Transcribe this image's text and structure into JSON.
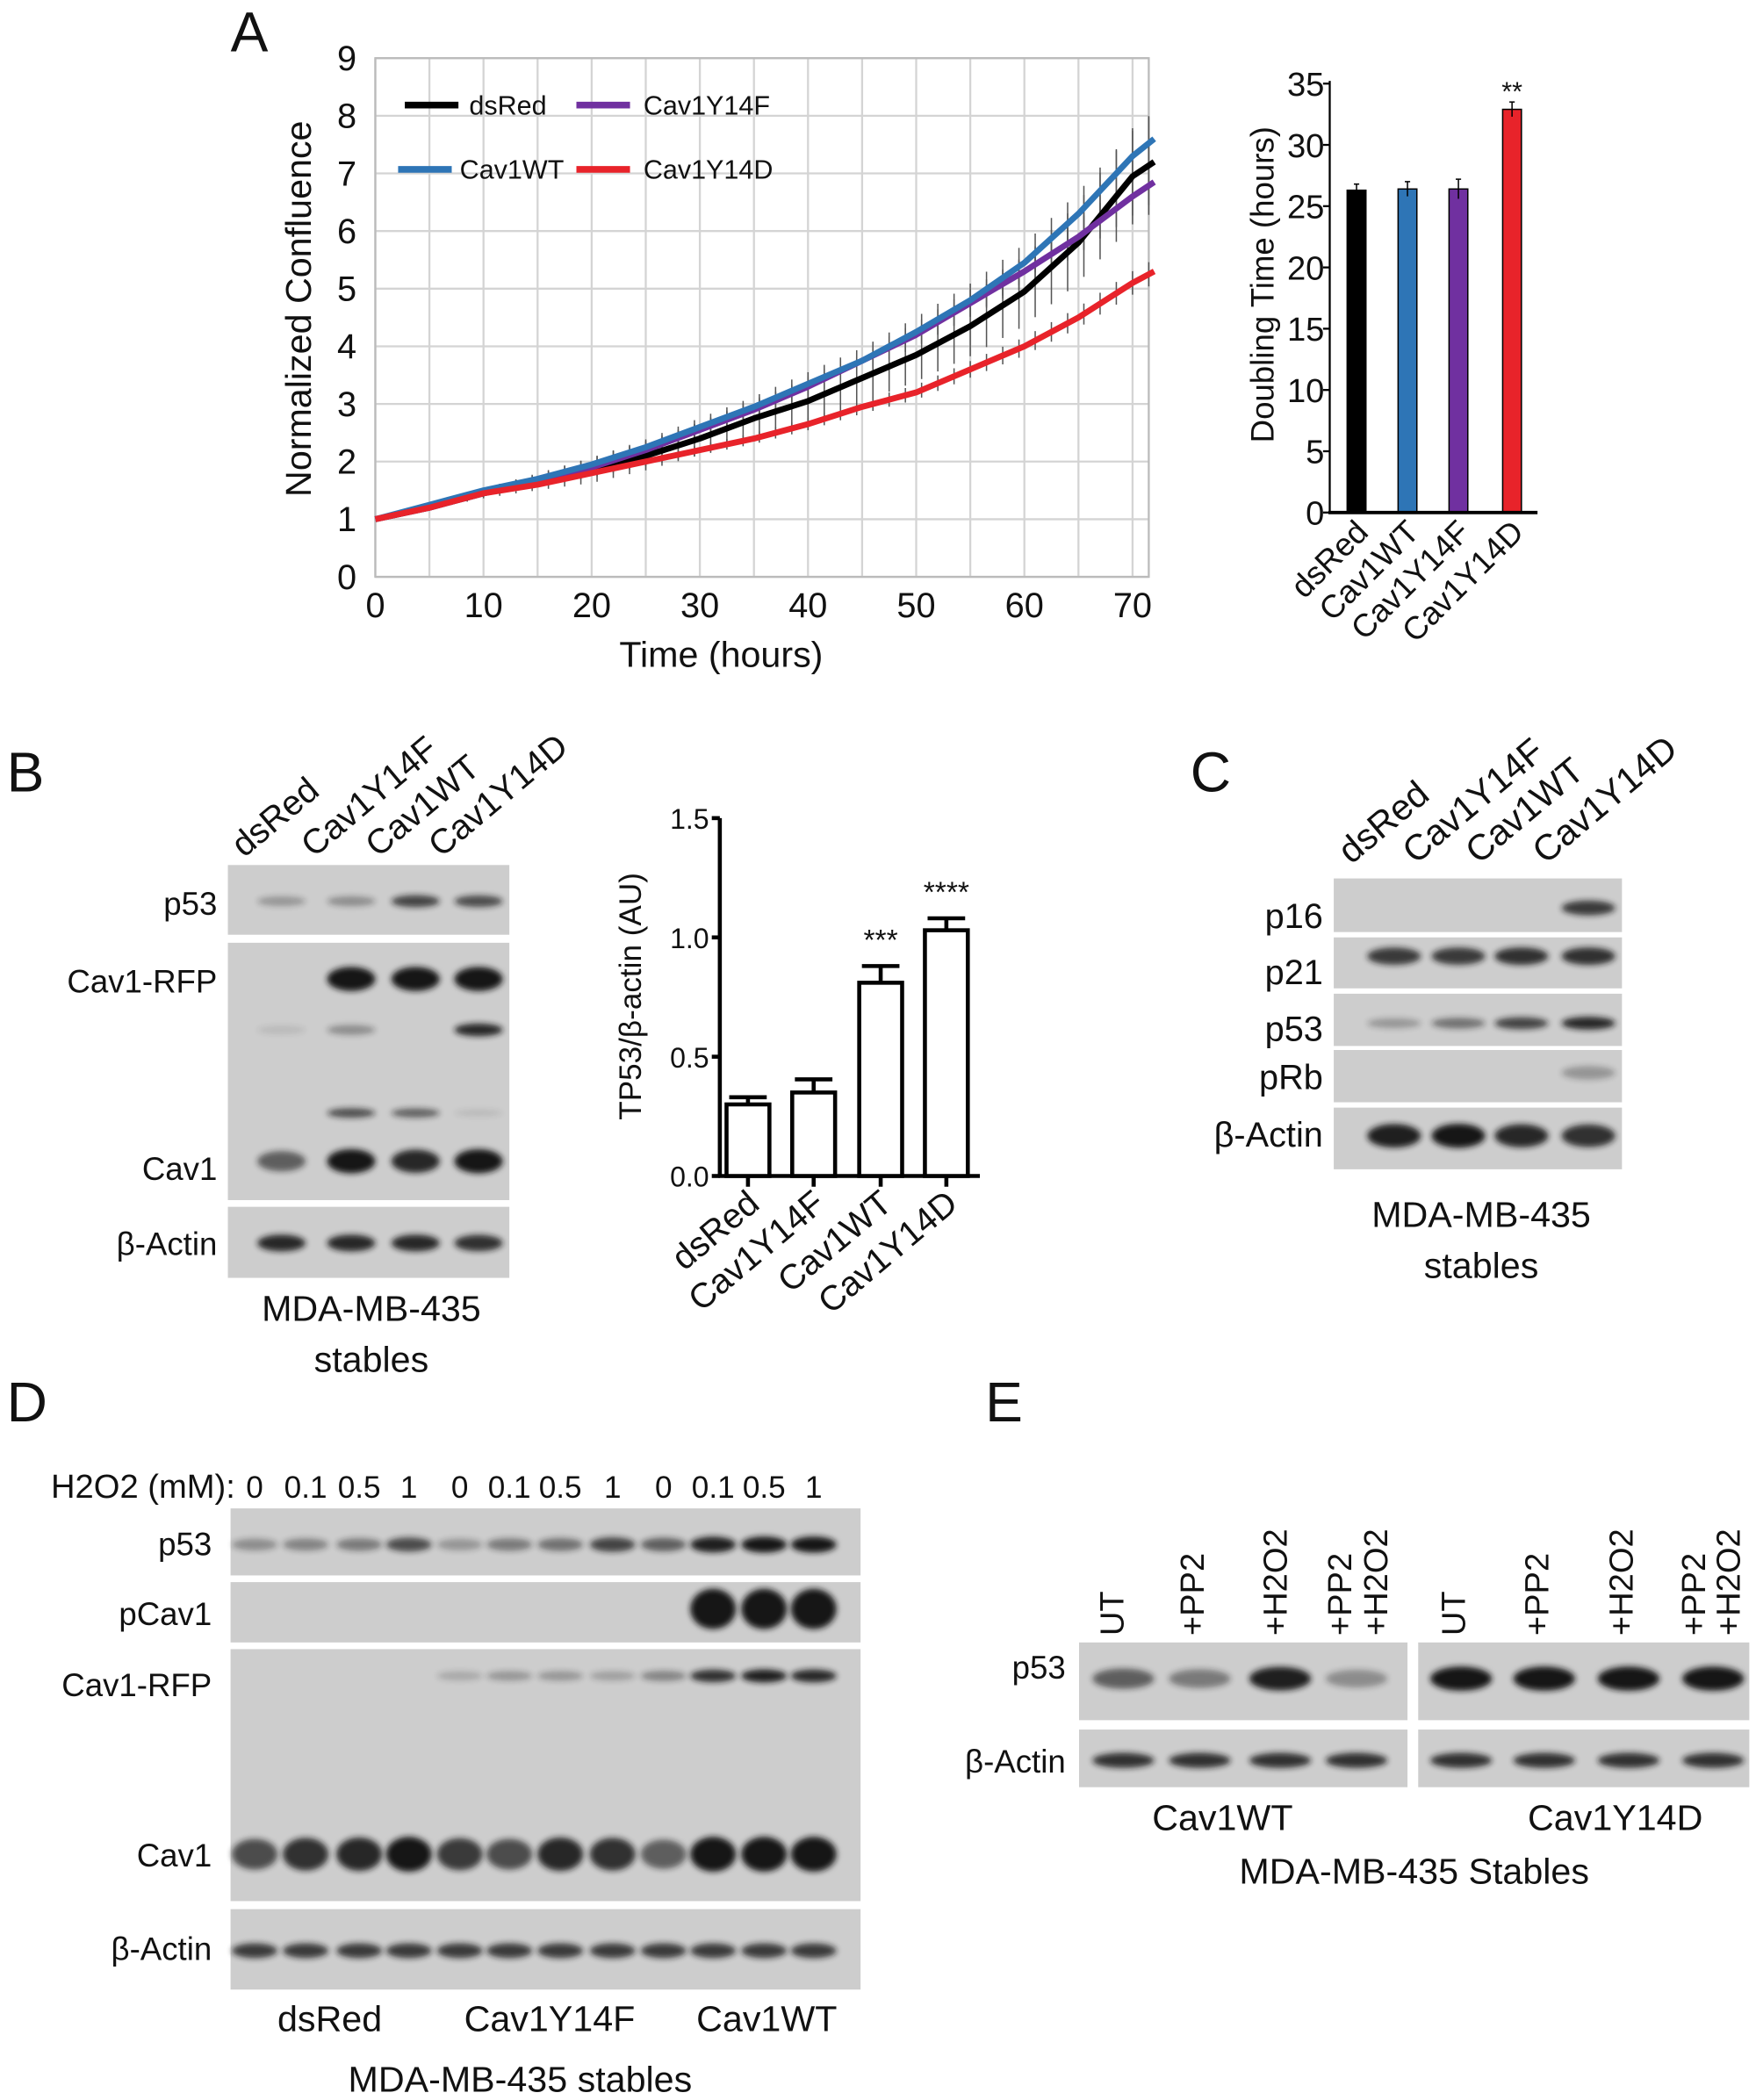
{
  "panels": {
    "A": "A",
    "B": "B",
    "C": "C",
    "D": "D",
    "E": "E"
  },
  "chart_data": [
    {
      "type": "line",
      "xlabel": "Time (hours)",
      "ylabel": "Normalized Confluence",
      "xlim": [
        0,
        71.5
      ],
      "ylim": [
        0,
        9
      ],
      "xticks": [
        "0",
        "10",
        "20",
        "30",
        "40",
        "50",
        "60",
        "70"
      ],
      "yticks": [
        "0",
        "1",
        "2",
        "3",
        "4",
        "5",
        "6",
        "7",
        "8",
        "9"
      ],
      "grid": true,
      "legend": "top-left",
      "series": [
        {
          "name": "dsRed",
          "color": "#000000",
          "x": [
            0,
            5,
            10,
            15,
            20,
            25,
            30,
            35,
            40,
            45,
            50,
            55,
            60,
            65,
            70,
            72
          ],
          "y": [
            1.0,
            1.2,
            1.45,
            1.65,
            1.85,
            2.1,
            2.4,
            2.75,
            3.05,
            3.45,
            3.85,
            4.35,
            4.95,
            5.8,
            6.95,
            7.2
          ],
          "rel_err": 0.12
        },
        {
          "name": "Cav1Y14F",
          "color": "#7030a0",
          "x": [
            0,
            5,
            10,
            15,
            20,
            25,
            30,
            35,
            40,
            45,
            50,
            55,
            60,
            65,
            70,
            72
          ],
          "y": [
            1.0,
            1.2,
            1.45,
            1.65,
            1.9,
            2.2,
            2.55,
            2.9,
            3.3,
            3.75,
            4.2,
            4.75,
            5.3,
            5.9,
            6.6,
            6.85
          ],
          "rel_err": 0.05
        },
        {
          "name": "Cav1WT",
          "color": "#2e75b6",
          "x": [
            0,
            5,
            10,
            15,
            20,
            25,
            30,
            35,
            40,
            45,
            50,
            55,
            60,
            65,
            70,
            72
          ],
          "y": [
            1.0,
            1.25,
            1.5,
            1.7,
            1.95,
            2.25,
            2.6,
            2.95,
            3.35,
            3.75,
            4.25,
            4.8,
            5.45,
            6.3,
            7.3,
            7.6
          ],
          "rel_err": 0.06
        },
        {
          "name": "Cav1Y14D",
          "color": "#e8232a",
          "x": [
            0,
            5,
            10,
            15,
            20,
            25,
            30,
            35,
            40,
            45,
            50,
            55,
            60,
            65,
            70,
            72
          ],
          "y": [
            1.0,
            1.2,
            1.45,
            1.6,
            1.8,
            2.0,
            2.2,
            2.4,
            2.65,
            2.95,
            3.2,
            3.6,
            4.0,
            4.5,
            5.1,
            5.3
          ],
          "rel_err": 0.04
        }
      ]
    },
    {
      "type": "bar",
      "ylabel": "Doubling Time (hours)",
      "categories": [
        "dsRed",
        "Cav1WT",
        "Cav1Y14F",
        "Cav1Y14D"
      ],
      "values": [
        26.3,
        26.4,
        26.4,
        32.9
      ],
      "errors": [
        0.5,
        0.6,
        0.8,
        0.6
      ],
      "colors": [
        "#000000",
        "#2e75b6",
        "#7030a0",
        "#e8232a"
      ],
      "ylim": [
        0,
        35
      ],
      "yticks": [
        "0",
        "5",
        "10",
        "15",
        "20",
        "25",
        "30",
        "35"
      ],
      "annotations": [
        "",
        "",
        "",
        "**"
      ]
    },
    {
      "type": "bar",
      "ylabel": "TP53/β-actin (AU)",
      "categories": [
        "dsRed",
        "Cav1Y14F",
        "Cav1WT",
        "Cav1Y14D"
      ],
      "values": [
        0.3,
        0.35,
        0.81,
        1.03
      ],
      "errors": [
        0.03,
        0.055,
        0.07,
        0.05
      ],
      "ylim": [
        0,
        1.5
      ],
      "yticks": [
        "0.0",
        "0.5",
        "1.0",
        "1.5"
      ],
      "annotations": [
        "",
        "",
        "***",
        "****"
      ]
    }
  ],
  "blot_B": {
    "lanes": [
      "dsRed",
      "Cav1Y14F",
      "Cav1WT",
      "Cav1Y14D"
    ],
    "rows": [
      {
        "label": "p53",
        "intensity": [
          0.3,
          0.35,
          0.75,
          0.7
        ]
      },
      {
        "label": "Cav1-RFP",
        "intensity": [
          0,
          1,
          1,
          1
        ]
      },
      {
        "label": "",
        "intensity": [
          0.1,
          0.35,
          0,
          0.9
        ]
      },
      {
        "label": "",
        "intensity": [
          0,
          0.7,
          0.6,
          0.1
        ]
      },
      {
        "label": "Cav1",
        "intensity": [
          0.6,
          1,
          0.9,
          1
        ]
      },
      {
        "label": "β-Actin",
        "intensity": [
          0.9,
          0.9,
          0.9,
          0.85
        ]
      }
    ],
    "caption": [
      "MDA-MB-435",
      "stables"
    ]
  },
  "blot_C": {
    "lanes": [
      "dsRed",
      "Cav1Y14F",
      "Cav1WT",
      "Cav1Y14D"
    ],
    "rows": [
      {
        "label": "p16",
        "intensity": [
          0,
          0,
          0,
          0.8
        ]
      },
      {
        "label": "p21",
        "intensity": [
          0.8,
          0.8,
          0.85,
          0.85
        ]
      },
      {
        "label": "p53",
        "intensity": [
          0.3,
          0.5,
          0.75,
          0.9
        ]
      },
      {
        "label": "pRb",
        "intensity": [
          0,
          0,
          0,
          0.3
        ]
      },
      {
        "label": "β-Actin",
        "intensity": [
          0.95,
          1,
          0.9,
          0.85
        ]
      }
    ],
    "caption": [
      "MDA-MB-435",
      "stables"
    ]
  },
  "blot_D": {
    "treatment_label": "H2O2 (mM):",
    "doses": [
      "0",
      "0.1",
      "0.5",
      "1",
      "0",
      "0.1",
      "0.5",
      "1",
      "0",
      "0.1",
      "0.5",
      "1"
    ],
    "groups": [
      "dsRed",
      "Cav1Y14F",
      "Cav1WT"
    ],
    "rows": [
      {
        "label": "p53",
        "intensity": [
          0.35,
          0.4,
          0.45,
          0.7,
          0.3,
          0.45,
          0.5,
          0.75,
          0.6,
          0.95,
          1,
          1
        ]
      },
      {
        "label": "pCav1",
        "intensity": [
          0,
          0,
          0,
          0,
          0,
          0,
          0,
          0,
          0,
          1,
          1,
          1
        ]
      },
      {
        "label": "Cav1-RFP",
        "intensity": [
          0,
          0,
          0,
          0,
          0.2,
          0.3,
          0.3,
          0.25,
          0.4,
          0.85,
          0.95,
          0.9
        ]
      },
      {
        "label": "Cav1",
        "intensity": [
          0.7,
          0.85,
          0.9,
          1,
          0.8,
          0.7,
          0.9,
          0.85,
          0.6,
          1,
          1,
          1
        ]
      },
      {
        "label": "β-Actin",
        "intensity": [
          0.8,
          0.8,
          0.8,
          0.8,
          0.8,
          0.8,
          0.8,
          0.8,
          0.8,
          0.8,
          0.8,
          0.8
        ]
      }
    ],
    "caption": "MDA-MB-435 stables"
  },
  "blot_E": {
    "lanes": [
      "UT",
      "+PP2",
      "+H2O2",
      "+PP2",
      "+H2O2",
      "UT",
      "+PP2",
      "+H2O2",
      "+PP2",
      "+H2O2"
    ],
    "groups": [
      "Cav1WT",
      "Cav1Y14D"
    ],
    "rows": [
      {
        "label": "p53",
        "intensity": [
          0.6,
          0.45,
          0.95,
          0.35,
          1,
          1,
          1,
          1
        ]
      },
      {
        "label": "β-Actin",
        "intensity": [
          0.85,
          0.85,
          0.85,
          0.85,
          0.85,
          0.85,
          0.85,
          0.85
        ]
      }
    ],
    "caption": "MDA-MB-435 Stables"
  }
}
